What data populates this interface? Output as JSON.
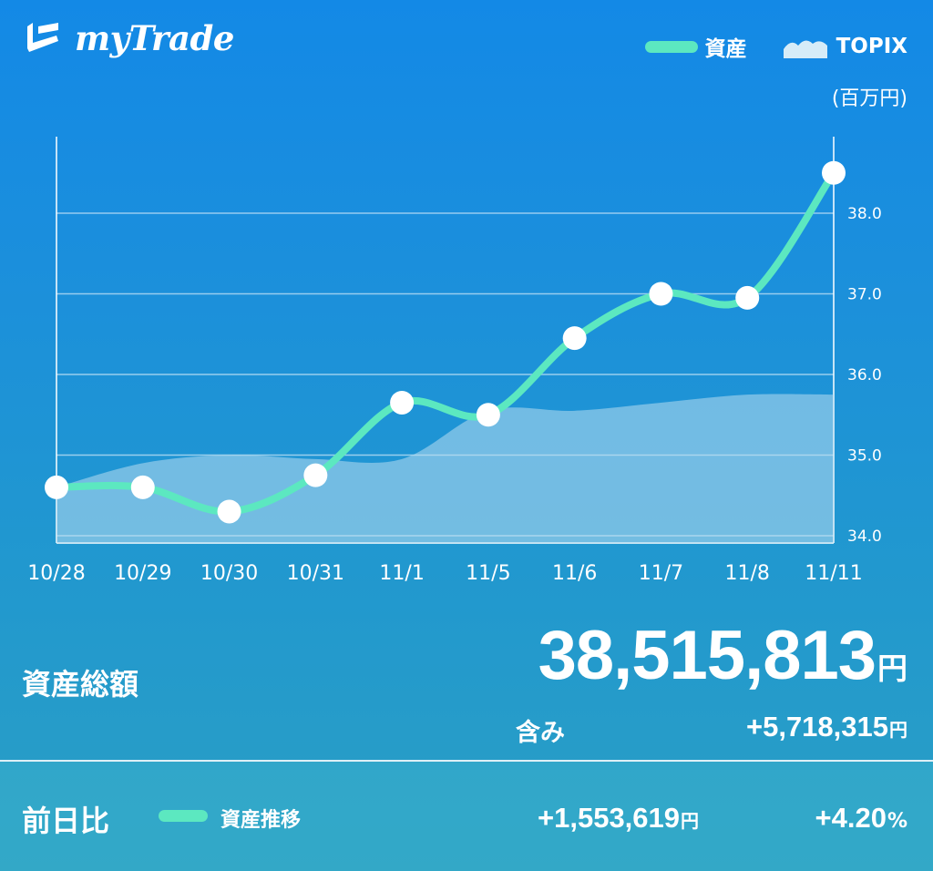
{
  "header": {
    "app_name": "myTrade",
    "legend": [
      {
        "label": "資産",
        "style": "line"
      },
      {
        "label": "TOPIX",
        "style": "area"
      }
    ],
    "unit_label": "(百万円)"
  },
  "colors": {
    "asset_line": "#5ce8c0",
    "topix_area": "#b8dcf0",
    "point_fill": "#ffffff"
  },
  "chart_data": {
    "type": "line",
    "categories": [
      "10/28",
      "10/29",
      "10/30",
      "10/31",
      "11/1",
      "11/5",
      "11/6",
      "11/7",
      "11/8",
      "11/11"
    ],
    "series": [
      {
        "name": "資産",
        "values": [
          34.6,
          34.6,
          34.3,
          34.75,
          35.65,
          35.5,
          36.45,
          37.0,
          36.95,
          38.5
        ]
      },
      {
        "name": "TOPIX",
        "values": [
          34.6,
          34.9,
          35.0,
          34.95,
          34.95,
          35.55,
          35.55,
          35.65,
          35.75,
          35.75
        ]
      }
    ],
    "yticks": [
      "38.0",
      "37.0",
      "36.0",
      "35.0",
      "34.0"
    ],
    "ylim": [
      33.95,
      38.95
    ],
    "grid": true
  },
  "summary": {
    "total_label": "資産総額",
    "total_value": "38,515,813",
    "total_unit": "円",
    "included_label": "含み",
    "included_value": "+5,718,315",
    "included_unit": "円"
  },
  "footer": {
    "label": "前日比",
    "series_label": "資産推移",
    "diff_value": "+1,553,619",
    "diff_unit": "円",
    "pct_value": "+4.20",
    "pct_unit": "%"
  }
}
